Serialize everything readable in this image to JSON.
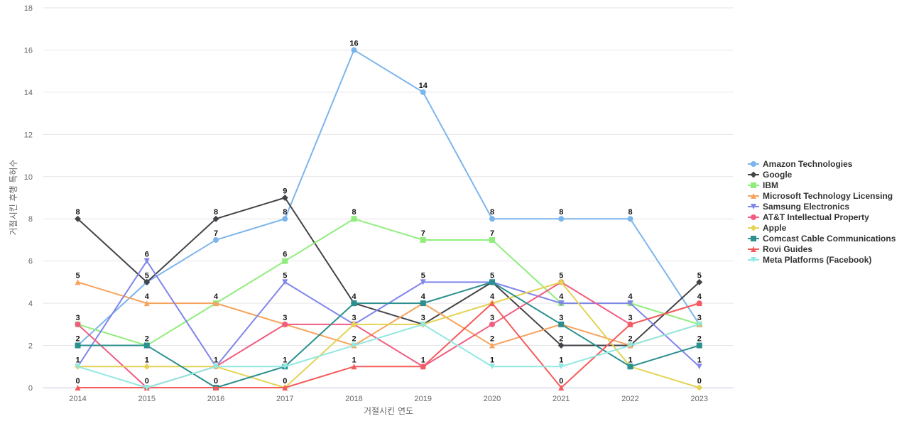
{
  "chart_data": {
    "type": "line",
    "title": "",
    "xlabel": "거절시킨 연도",
    "ylabel": "거절시킨 후행 특허수",
    "ylim": [
      0,
      18
    ],
    "yticks": [
      0,
      2,
      4,
      6,
      8,
      10,
      12,
      14,
      16,
      18
    ],
    "x": [
      "2014",
      "2015",
      "2016",
      "2017",
      "2018",
      "2019",
      "2020",
      "2021",
      "2022",
      "2023"
    ],
    "legend_position": "right",
    "grid": true,
    "series": [
      {
        "name": "Amazon Technologies",
        "color": "#7cb5ec",
        "marker": "circle",
        "values": [
          2,
          5,
          7,
          8,
          16,
          14,
          8,
          8,
          8,
          3
        ]
      },
      {
        "name": "Google",
        "color": "#434348",
        "marker": "diamond",
        "values": [
          8,
          5,
          8,
          9,
          4,
          3,
          5,
          2,
          2,
          5
        ]
      },
      {
        "name": "IBM",
        "color": "#90ed7d",
        "marker": "square",
        "values": [
          3,
          2,
          4,
          6,
          8,
          7,
          7,
          4,
          4,
          3
        ]
      },
      {
        "name": "Microsoft Technology Licensing",
        "color": "#f7a35c",
        "marker": "triangle",
        "values": [
          5,
          4,
          4,
          3,
          2,
          4,
          2,
          3,
          2,
          3
        ]
      },
      {
        "name": "Samsung Electronics",
        "color": "#8085e9",
        "marker": "triangle-down",
        "values": [
          1,
          6,
          1,
          5,
          3,
          5,
          5,
          4,
          4,
          1
        ]
      },
      {
        "name": "AT&T Intellectual Property",
        "color": "#f15c80",
        "marker": "circle",
        "values": [
          3,
          0,
          1,
          3,
          3,
          1,
          3,
          5,
          3,
          4
        ]
      },
      {
        "name": "Apple",
        "color": "#e4d354",
        "marker": "diamond",
        "values": [
          1,
          1,
          1,
          0,
          3,
          3,
          4,
          5,
          1,
          0
        ]
      },
      {
        "name": "Comcast Cable Communications",
        "color": "#2b908f",
        "marker": "square",
        "values": [
          2,
          2,
          0,
          1,
          4,
          4,
          5,
          3,
          1,
          2
        ]
      },
      {
        "name": "Rovi Guides",
        "color": "#f45b5b",
        "marker": "triangle",
        "values": [
          0,
          0,
          0,
          0,
          1,
          1,
          4,
          0,
          3,
          4
        ]
      },
      {
        "name": "Meta Platforms (Facebook)",
        "color": "#91e8e1",
        "marker": "triangle-down",
        "values": [
          1,
          0,
          1,
          1,
          2,
          3,
          1,
          1,
          2,
          3
        ]
      }
    ],
    "data_labels": {
      "2014": [
        8,
        5,
        3,
        2,
        1,
        0
      ],
      "2015": [
        6,
        5,
        4,
        2,
        1,
        0
      ],
      "2016": [
        8,
        7,
        4,
        1,
        0
      ],
      "2017": [
        9,
        8,
        6,
        5,
        3,
        1,
        0
      ],
      "2018": [
        16,
        8,
        4,
        3,
        2,
        1
      ],
      "2019": [
        14,
        7,
        5,
        4,
        3,
        1
      ],
      "2020": [
        8,
        7,
        5,
        4,
        3,
        2,
        1
      ],
      "2021": [
        8,
        5,
        4,
        3,
        2,
        1,
        0
      ],
      "2022": [
        8,
        4,
        3,
        2,
        1
      ],
      "2023": [
        5,
        4,
        3,
        2,
        1,
        0
      ]
    }
  }
}
